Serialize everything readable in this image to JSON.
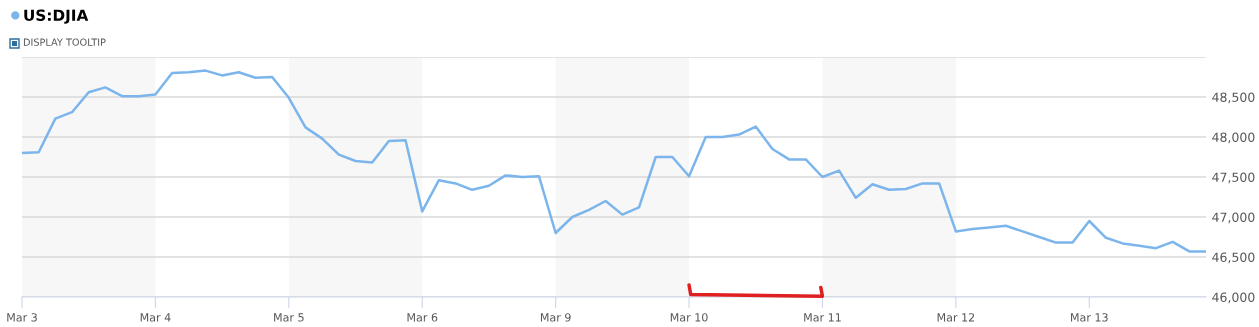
{
  "chart_data": {
    "type": "line",
    "annotations": [
      "DISPLAY TOOLTIP"
    ],
    "categories": [
      "Mar 3",
      null,
      null,
      null,
      null,
      null,
      null,
      null,
      "Mar 4",
      null,
      null,
      null,
      null,
      null,
      null,
      null,
      "Mar 5",
      null,
      null,
      null,
      null,
      null,
      null,
      null,
      "Mar 6",
      null,
      null,
      null,
      null,
      null,
      null,
      null,
      "Mar 9",
      null,
      null,
      null,
      null,
      null,
      null,
      null,
      "Mar 10",
      null,
      null,
      null,
      null,
      null,
      null,
      null,
      "Mar 11",
      null,
      null,
      null,
      null,
      null,
      null,
      null,
      "Mar 12",
      null,
      null,
      null,
      null,
      null,
      null,
      null,
      "Mar 13",
      null,
      null,
      null,
      null,
      null,
      null,
      null
    ],
    "series": [
      {
        "name": "US:DJIA",
        "color": "#7cb5ec",
        "values": [
          47800,
          47810,
          48230,
          48310,
          48560,
          48620,
          48510,
          48510,
          48530,
          48800,
          48810,
          48830,
          48770,
          48810,
          48740,
          48750,
          48490,
          48120,
          47980,
          47780,
          47700,
          47680,
          47950,
          47960,
          47070,
          47460,
          47420,
          47340,
          47390,
          47520,
          47500,
          47510,
          46800,
          47000,
          47090,
          47200,
          47030,
          47120,
          47750,
          47750,
          47510,
          48000,
          48000,
          48030,
          48130,
          47850,
          47720,
          47720,
          47500,
          47580,
          47240,
          47410,
          47340,
          47350,
          47420,
          47420,
          46820,
          46850,
          46870,
          46890,
          46820,
          46750,
          46680,
          46680,
          46950,
          46740,
          46670,
          46640,
          46610,
          46690,
          46570,
          46570
        ]
      }
    ],
    "ylim": [
      46000,
      49000
    ],
    "yticks": [
      {
        "value": 46000,
        "label": "46,000"
      },
      {
        "value": 46500,
        "label": "46,500"
      },
      {
        "value": 47000,
        "label": "47,000"
      },
      {
        "value": 47500,
        "label": "47,500"
      },
      {
        "value": 48000,
        "label": "48,000"
      },
      {
        "value": 48500,
        "label": "48,500"
      },
      {
        "value": 49000,
        "label": null
      }
    ],
    "bands": [
      {
        "axis": "x",
        "from": "Mar 3",
        "to": "Mar 4",
        "color": "#f7f7f7"
      },
      {
        "axis": "x",
        "from": "Mar 5",
        "to": "Mar 6",
        "color": "#f7f7f7"
      },
      {
        "axis": "x",
        "from": "Mar 9",
        "to": "Mar 10",
        "color": "#f7f7f7"
      },
      {
        "axis": "x",
        "from": "Mar 11",
        "to": "Mar 12",
        "color": "#f7f7f7"
      }
    ],
    "grid": "y",
    "legend": "top left",
    "marker": "none",
    "line_style": "solid"
  }
}
